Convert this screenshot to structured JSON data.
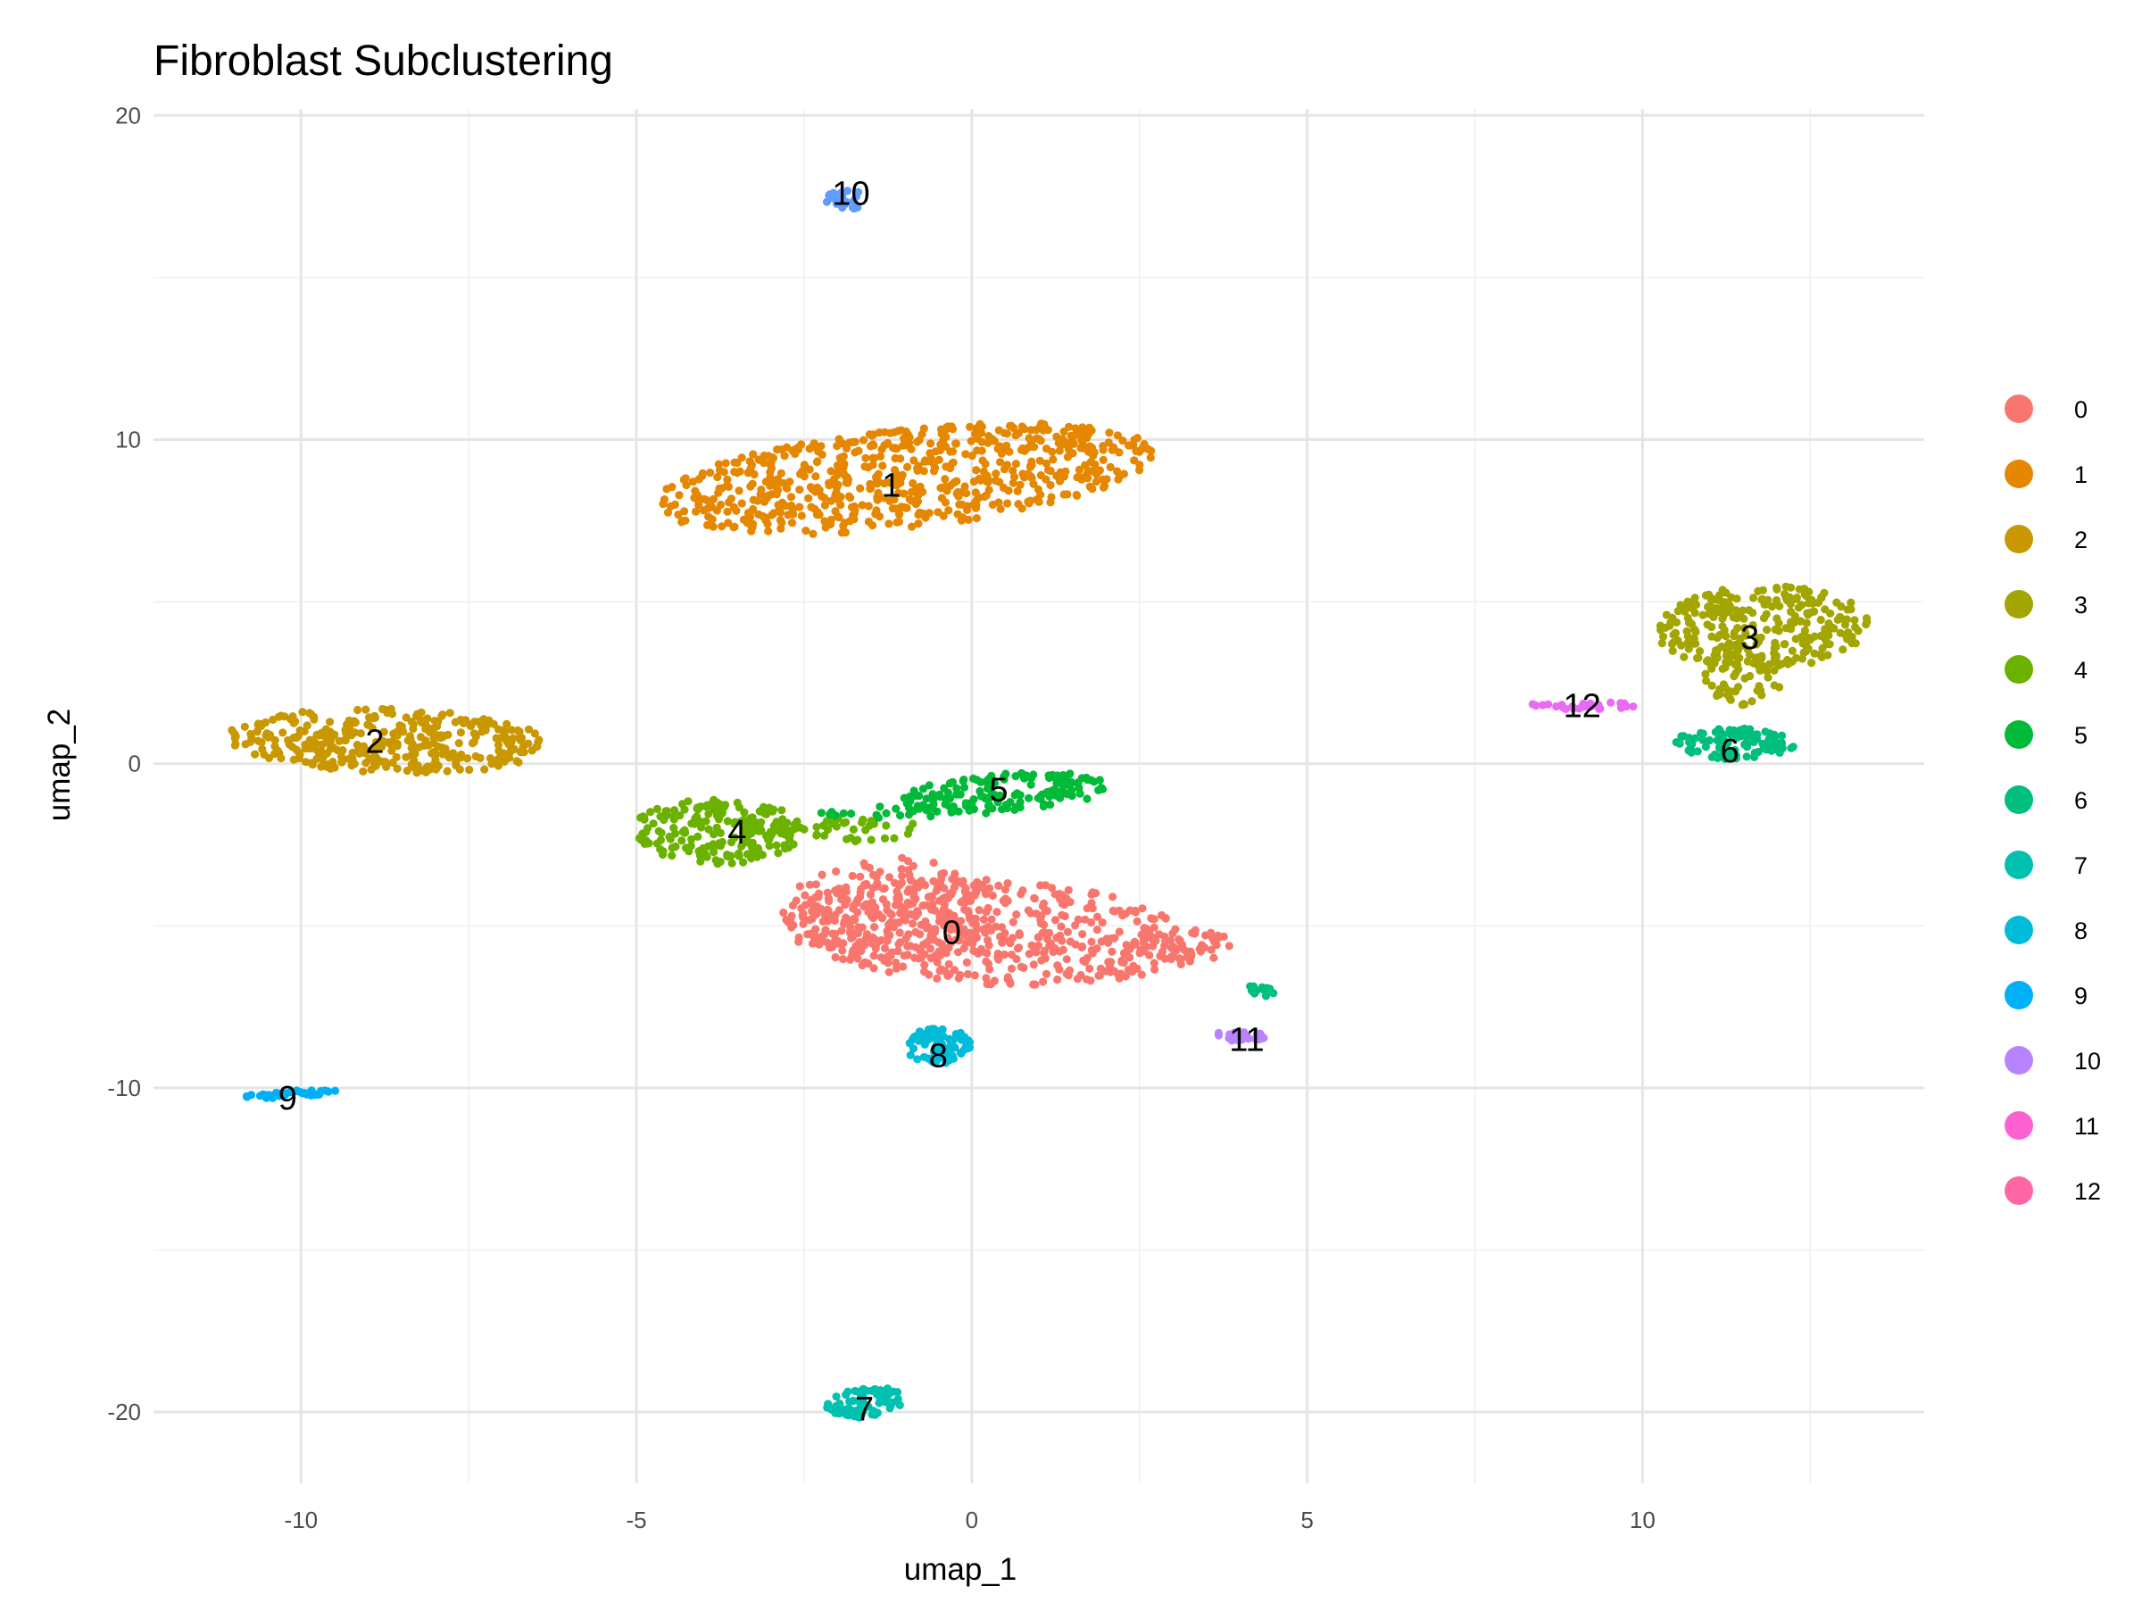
{
  "chart_data": {
    "type": "scatter",
    "title": "Fibroblast Subclustering",
    "xlabel": "umap_1",
    "ylabel": "umap_2",
    "xlim": [
      -12.2,
      14.2
    ],
    "ylim": [
      -22.2,
      20.2
    ],
    "x_ticks": [
      -10,
      -5,
      0,
      5,
      10
    ],
    "y_ticks": [
      20,
      10,
      0,
      -10,
      -20
    ],
    "x_tick_labels": [
      "-10",
      "-5",
      "0",
      "5",
      "10"
    ],
    "y_tick_labels": [
      "20",
      "10",
      "0",
      "-10",
      "-20"
    ],
    "grid": true,
    "legend_position": "right",
    "clusters": [
      {
        "name": "0",
        "color": "#F8766D",
        "label_x": -0.3,
        "label_y": -5.2,
        "regions": [
          {
            "cx": 0.3,
            "cy": -5.2,
            "rx": 3.2,
            "ry": 1.6,
            "angle": -8,
            "n": 520
          },
          {
            "cx": -1.2,
            "cy": -4.5,
            "rx": 1.6,
            "ry": 1.6,
            "angle": 0,
            "n": 160
          },
          {
            "cx": 3.2,
            "cy": -5.6,
            "rx": 0.8,
            "ry": 0.5,
            "angle": -15,
            "n": 40
          }
        ]
      },
      {
        "name": "1",
        "color": "#E58700",
        "label_x": -1.2,
        "label_y": 8.6,
        "regions": [
          {
            "cx": -1.0,
            "cy": 8.8,
            "rx": 3.8,
            "ry": 1.5,
            "angle": 14,
            "n": 650
          }
        ]
      },
      {
        "name": "2",
        "color": "#C99800",
        "label_x": -8.9,
        "label_y": 0.7,
        "regions": [
          {
            "cx": -8.7,
            "cy": 0.7,
            "rx": 2.4,
            "ry": 1.0,
            "angle": -4,
            "n": 350
          }
        ]
      },
      {
        "name": "3",
        "color": "#A3A500",
        "label_x": 11.6,
        "label_y": 3.9,
        "regions": [
          {
            "cx": 11.8,
            "cy": 4.2,
            "rx": 1.6,
            "ry": 1.3,
            "angle": 10,
            "n": 260
          },
          {
            "cx": 11.5,
            "cy": 2.8,
            "rx": 0.6,
            "ry": 1.0,
            "angle": 0,
            "n": 60
          }
        ]
      },
      {
        "name": "4",
        "color": "#6BB100",
        "label_x": -3.5,
        "label_y": -2.1,
        "regions": [
          {
            "cx": -3.8,
            "cy": -2.1,
            "rx": 1.3,
            "ry": 1.0,
            "angle": 0,
            "n": 180
          },
          {
            "cx": -2.0,
            "cy": -2.0,
            "rx": 1.3,
            "ry": 0.4,
            "angle": 0,
            "n": 50
          }
        ]
      },
      {
        "name": "5",
        "color": "#00BA38",
        "label_x": 0.4,
        "label_y": -0.8,
        "regions": [
          {
            "cx": 0.5,
            "cy": -0.9,
            "rx": 1.6,
            "ry": 0.6,
            "angle": 8,
            "n": 150
          },
          {
            "cx": -1.3,
            "cy": -1.5,
            "rx": 1.0,
            "ry": 0.2,
            "angle": 0,
            "n": 20
          }
        ]
      },
      {
        "name": "6",
        "color": "#00BF7D",
        "label_x": 11.3,
        "label_y": 0.4,
        "regions": [
          {
            "cx": 11.4,
            "cy": 0.6,
            "rx": 0.9,
            "ry": 0.5,
            "angle": -5,
            "n": 100
          },
          {
            "cx": 4.3,
            "cy": -7.0,
            "rx": 0.25,
            "ry": 0.2,
            "angle": 0,
            "n": 14
          }
        ]
      },
      {
        "name": "7",
        "color": "#00C0AF",
        "label_x": -1.6,
        "label_y": -19.9,
        "regions": [
          {
            "cx": -1.6,
            "cy": -19.7,
            "rx": 0.6,
            "ry": 0.45,
            "angle": 25,
            "n": 80
          }
        ]
      },
      {
        "name": "8",
        "color": "#00BCD8",
        "label_x": -0.5,
        "label_y": -9.0,
        "regions": [
          {
            "cx": -0.5,
            "cy": -8.7,
            "rx": 0.5,
            "ry": 0.55,
            "angle": 0,
            "n": 90
          }
        ]
      },
      {
        "name": "9",
        "color": "#00B0F6",
        "label_x": -10.2,
        "label_y": -10.3,
        "regions": [
          {
            "cx": -10.2,
            "cy": -10.2,
            "rx": 0.75,
            "ry": 0.1,
            "angle": 8,
            "n": 45
          }
        ]
      },
      {
        "name": "10",
        "color": "#619CFF",
        "label_x": -1.8,
        "label_y": 17.6,
        "regions": [
          {
            "cx": -1.9,
            "cy": 17.4,
            "rx": 0.3,
            "ry": 0.35,
            "angle": 0,
            "n": 22
          }
        ]
      },
      {
        "name": "11",
        "color": "#B983FF",
        "label_x": 4.1,
        "label_y": -8.5,
        "regions": [
          {
            "cx": 4.0,
            "cy": -8.4,
            "rx": 0.45,
            "ry": 0.15,
            "angle": 0,
            "n": 25
          }
        ]
      },
      {
        "name": "12",
        "color": "#E76BF3",
        "label_x": 9.1,
        "label_y": 1.8,
        "regions": [
          {
            "cx": 9.1,
            "cy": 1.8,
            "rx": 0.8,
            "ry": 0.12,
            "angle": 0,
            "n": 30
          }
        ]
      }
    ],
    "legend_colors": [
      "#F8766D",
      "#E58700",
      "#C99800",
      "#A3A500",
      "#6BB100",
      "#00BA38",
      "#00BF7D",
      "#00C0AF",
      "#00BCD8",
      "#00B0F6",
      "#B983FF",
      "#FD61D1",
      "#FF67A4"
    ]
  }
}
